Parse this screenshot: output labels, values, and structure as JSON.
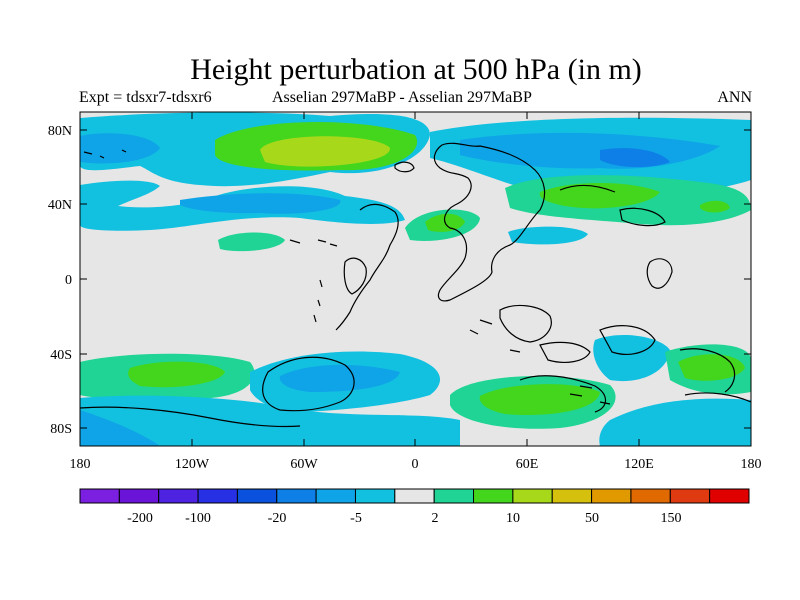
{
  "title": "Height perturbation at 500 hPa (in m)",
  "subtitle_left": "Expt = tdsxr7-tdsxr6",
  "subtitle_center": "Asselian 297MaBP - Asselian 297MaBP",
  "subtitle_right": "ANN",
  "axes": {
    "y_ticks": [
      "80N",
      "40N",
      "0",
      "40S",
      "80S"
    ],
    "x_ticks": [
      "180",
      "120W",
      "60W",
      "0",
      "60E",
      "120E",
      "180"
    ]
  },
  "colorbar": {
    "colors": [
      "#7b1fe0",
      "#6a14d8",
      "#4d22e0",
      "#2830e6",
      "#0a52de",
      "#0d7fe6",
      "#0fa3e8",
      "#12c0e0",
      "#e6e6e6",
      "#1fd494",
      "#44d61c",
      "#a8d81a",
      "#d6c00e",
      "#e09a00",
      "#e06a00",
      "#e03a10",
      "#e00000"
    ],
    "labels": [
      "-200",
      "-100",
      "-20",
      "-5",
      "2",
      "10",
      "50",
      "150"
    ]
  },
  "colors": {
    "background": "#e6e6e6",
    "neg_light": "#12c0e0",
    "neg_mid": "#0fa3e8",
    "neg_strong": "#0d7fe6",
    "pos_light": "#1fd494",
    "pos_mid": "#44d61c",
    "pos_strong": "#a8d81a"
  }
}
